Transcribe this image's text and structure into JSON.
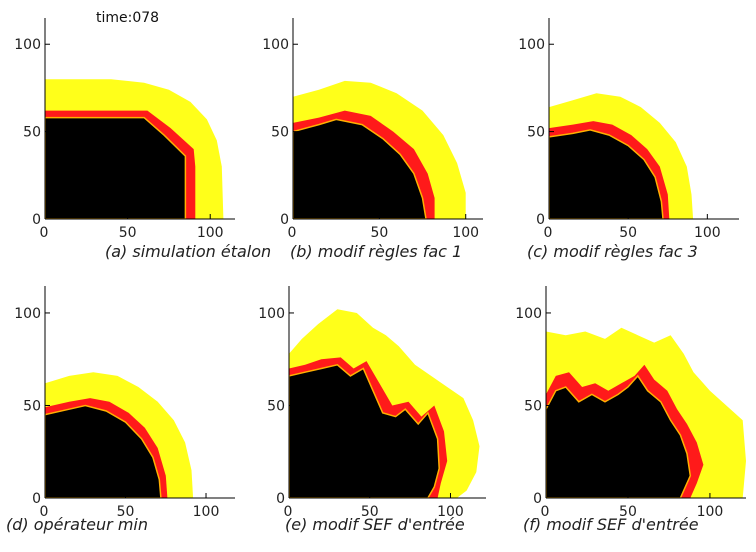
{
  "time_label": "time:078",
  "colors": {
    "burnt": "#000000",
    "front": "#ff1a1a",
    "front_edge": "#ffb000",
    "heated": "#ffff1a",
    "axis": "#000000",
    "background": "#ffffff"
  },
  "chart_data": [
    {
      "type": "area",
      "title": "",
      "caption": "(a) simulation étalon",
      "xticks": [
        0,
        50,
        100
      ],
      "yticks": [
        0,
        50,
        100
      ],
      "xlim": [
        0,
        115
      ],
      "ylim": [
        0,
        107
      ],
      "series": [
        {
          "values": [
            [
              0,
              80
            ],
            [
              40,
              80
            ],
            [
              60,
              78
            ],
            [
              75,
              74
            ],
            [
              88,
              67
            ],
            [
              98,
              57
            ],
            [
              104,
              45
            ],
            [
              107,
              30
            ],
            [
              108,
              0
            ]
          ]
        },
        {
          "values": [
            [
              0,
              62
            ],
            [
              50,
              62
            ],
            [
              62,
              62
            ],
            [
              76,
              52
            ],
            [
              90,
              40
            ],
            [
              91,
              30
            ],
            [
              91,
              0
            ]
          ]
        },
        {
          "values": [
            [
              0,
              58
            ],
            [
              50,
              58
            ],
            [
              60,
              58
            ],
            [
              72,
              48
            ],
            [
              85,
              36
            ],
            [
              85,
              0
            ]
          ]
        }
      ]
    },
    {
      "type": "area",
      "title": "",
      "caption": "(b) modif règles fac 1",
      "xticks": [
        0,
        50,
        100
      ],
      "yticks": [
        0,
        50,
        100
      ],
      "xlim": [
        0,
        110
      ],
      "ylim": [
        0,
        107
      ],
      "series": [
        {
          "values": [
            [
              0,
              70
            ],
            [
              15,
              74
            ],
            [
              30,
              79
            ],
            [
              45,
              78
            ],
            [
              60,
              72
            ],
            [
              75,
              62
            ],
            [
              87,
              48
            ],
            [
              95,
              32
            ],
            [
              100,
              15
            ],
            [
              100,
              0
            ]
          ]
        },
        {
          "values": [
            [
              0,
              55
            ],
            [
              15,
              58
            ],
            [
              30,
              62
            ],
            [
              45,
              59
            ],
            [
              58,
              50
            ],
            [
              70,
              40
            ],
            [
              78,
              26
            ],
            [
              82,
              12
            ],
            [
              82,
              0
            ]
          ]
        },
        {
          "values": [
            [
              0,
              50
            ],
            [
              15,
              54
            ],
            [
              25,
              57
            ],
            [
              40,
              54
            ],
            [
              52,
              46
            ],
            [
              62,
              37
            ],
            [
              70,
              26
            ],
            [
              75,
              12
            ],
            [
              77,
              0
            ]
          ]
        }
      ]
    },
    {
      "type": "area",
      "title": "",
      "caption": "(c) modif règles fac 3",
      "xticks": [
        0,
        50,
        100
      ],
      "yticks": [
        0,
        50,
        100
      ],
      "xlim": [
        0,
        120
      ],
      "ylim": [
        0,
        107
      ],
      "series": [
        {
          "values": [
            [
              0,
              64
            ],
            [
              15,
              68
            ],
            [
              30,
              72
            ],
            [
              45,
              70
            ],
            [
              58,
              64
            ],
            [
              70,
              55
            ],
            [
              80,
              44
            ],
            [
              87,
              30
            ],
            [
              90,
              14
            ],
            [
              91,
              0
            ]
          ]
        },
        {
          "values": [
            [
              0,
              52
            ],
            [
              15,
              54
            ],
            [
              28,
              56
            ],
            [
              40,
              54
            ],
            [
              52,
              48
            ],
            [
              62,
              40
            ],
            [
              70,
              30
            ],
            [
              75,
              14
            ],
            [
              76,
              0
            ]
          ]
        },
        {
          "values": [
            [
              0,
              47
            ],
            [
              15,
              49
            ],
            [
              26,
              51
            ],
            [
              38,
              48
            ],
            [
              50,
              42
            ],
            [
              60,
              34
            ],
            [
              67,
              24
            ],
            [
              71,
              10
            ],
            [
              72,
              0
            ]
          ]
        }
      ]
    },
    {
      "type": "area",
      "title": "",
      "caption": "(d) opérateur min",
      "xticks": [
        0,
        50,
        100
      ],
      "yticks": [
        0,
        50,
        100
      ],
      "xlim": [
        0,
        118
      ],
      "ylim": [
        0,
        107
      ],
      "series": [
        {
          "values": [
            [
              0,
              62
            ],
            [
              15,
              66
            ],
            [
              30,
              68
            ],
            [
              45,
              66
            ],
            [
              58,
              60
            ],
            [
              70,
              52
            ],
            [
              80,
              42
            ],
            [
              87,
              30
            ],
            [
              91,
              15
            ],
            [
              92,
              0
            ]
          ]
        },
        {
          "values": [
            [
              0,
              49
            ],
            [
              15,
              52
            ],
            [
              28,
              54
            ],
            [
              40,
              52
            ],
            [
              52,
              46
            ],
            [
              62,
              38
            ],
            [
              70,
              27
            ],
            [
              75,
              12
            ],
            [
              76,
              0
            ]
          ]
        },
        {
          "values": [
            [
              0,
              45
            ],
            [
              15,
              48
            ],
            [
              25,
              50
            ],
            [
              38,
              47
            ],
            [
              50,
              41
            ],
            [
              60,
              32
            ],
            [
              67,
              22
            ],
            [
              71,
              10
            ],
            [
              72,
              0
            ]
          ]
        }
      ]
    },
    {
      "type": "area",
      "title": "",
      "caption": "(e) modif SEF d'entrée",
      "xticks": [
        0,
        50,
        100
      ],
      "yticks": [
        0,
        50,
        100
      ],
      "xlim": [
        0,
        122
      ],
      "ylim": [
        0,
        107
      ],
      "series": [
        {
          "values": [
            [
              0,
              78
            ],
            [
              8,
              86
            ],
            [
              18,
              94
            ],
            [
              30,
              102
            ],
            [
              42,
              100
            ],
            [
              52,
              92
            ],
            [
              60,
              88
            ],
            [
              68,
              82
            ],
            [
              78,
              72
            ],
            [
              88,
              66
            ],
            [
              98,
              60
            ],
            [
              108,
              54
            ],
            [
              114,
              42
            ],
            [
              118,
              28
            ],
            [
              116,
              14
            ],
            [
              110,
              4
            ],
            [
              104,
              0
            ]
          ]
        },
        {
          "values": [
            [
              0,
              70
            ],
            [
              10,
              72
            ],
            [
              20,
              75
            ],
            [
              32,
              76
            ],
            [
              40,
              70
            ],
            [
              48,
              74
            ],
            [
              56,
              62
            ],
            [
              64,
              50
            ],
            [
              74,
              52
            ],
            [
              82,
              44
            ],
            [
              90,
              50
            ],
            [
              96,
              36
            ],
            [
              98,
              20
            ],
            [
              94,
              8
            ],
            [
              92,
              0
            ]
          ]
        },
        {
          "values": [
            [
              0,
              66
            ],
            [
              10,
              68
            ],
            [
              20,
              70
            ],
            [
              30,
              72
            ],
            [
              38,
              66
            ],
            [
              46,
              70
            ],
            [
              52,
              58
            ],
            [
              58,
              46
            ],
            [
              66,
              44
            ],
            [
              72,
              48
            ],
            [
              80,
              40
            ],
            [
              86,
              46
            ],
            [
              92,
              32
            ],
            [
              93,
              16
            ],
            [
              90,
              6
            ],
            [
              86,
              0
            ]
          ]
        }
      ]
    },
    {
      "type": "area",
      "title": "",
      "caption": "(f) modif SEF d'entrée",
      "xticks": [
        0,
        50,
        100
      ],
      "yticks": [
        0,
        50,
        100
      ],
      "xlim": [
        0,
        122
      ],
      "ylim": [
        0,
        107
      ],
      "series": [
        {
          "values": [
            [
              0,
              90
            ],
            [
              12,
              88
            ],
            [
              24,
              90
            ],
            [
              36,
              86
            ],
            [
              46,
              92
            ],
            [
              56,
              88
            ],
            [
              66,
              84
            ],
            [
              76,
              88
            ],
            [
              84,
              78
            ],
            [
              90,
              68
            ],
            [
              100,
              58
            ],
            [
              110,
              50
            ],
            [
              120,
              42
            ],
            [
              122,
              20
            ],
            [
              120,
              0
            ]
          ]
        },
        {
          "values": [
            [
              0,
              56
            ],
            [
              6,
              66
            ],
            [
              14,
              68
            ],
            [
              22,
              60
            ],
            [
              30,
              62
            ],
            [
              38,
              58
            ],
            [
              46,
              62
            ],
            [
              54,
              66
            ],
            [
              60,
              72
            ],
            [
              66,
              64
            ],
            [
              74,
              58
            ],
            [
              80,
              48
            ],
            [
              86,
              40
            ],
            [
              92,
              30
            ],
            [
              96,
              18
            ],
            [
              92,
              8
            ],
            [
              88,
              0
            ]
          ]
        },
        {
          "values": [
            [
              0,
              48
            ],
            [
              6,
              58
            ],
            [
              12,
              60
            ],
            [
              20,
              52
            ],
            [
              28,
              56
            ],
            [
              36,
              52
            ],
            [
              44,
              56
            ],
            [
              50,
              60
            ],
            [
              56,
              66
            ],
            [
              62,
              58
            ],
            [
              70,
              52
            ],
            [
              76,
              42
            ],
            [
              82,
              34
            ],
            [
              86,
              24
            ],
            [
              88,
              12
            ],
            [
              84,
              4
            ],
            [
              82,
              0
            ]
          ]
        }
      ]
    }
  ]
}
